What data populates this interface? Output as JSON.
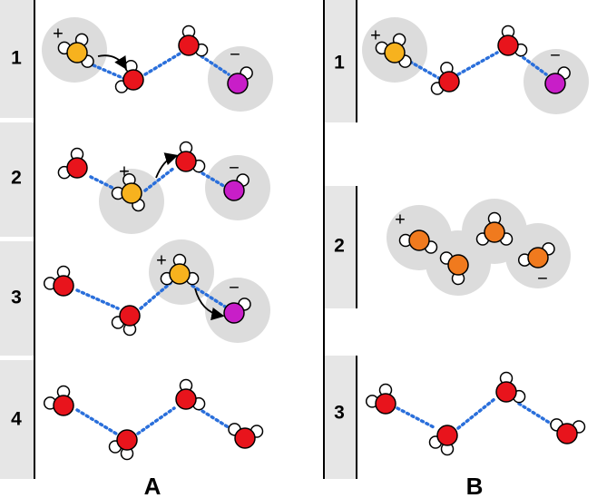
{
  "panels": [
    {
      "label": "A",
      "steps": [
        {
          "number": 1,
          "plus": "+",
          "minus": "−"
        },
        {
          "number": 2,
          "plus": "+",
          "minus": "−"
        },
        {
          "number": 3,
          "plus": "+",
          "minus": "−"
        },
        {
          "number": 4
        }
      ]
    },
    {
      "label": "B",
      "steps": [
        {
          "number": 1,
          "plus": "+",
          "minus": "−"
        },
        {
          "number": 2,
          "plus": "+",
          "minus": "−"
        },
        {
          "number": 3
        }
      ]
    }
  ]
}
